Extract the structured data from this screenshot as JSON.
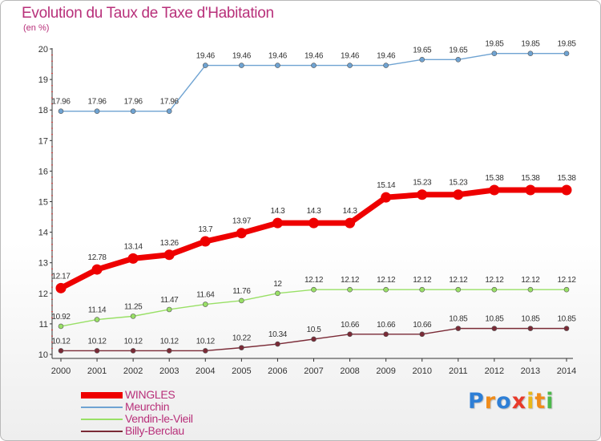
{
  "chart_data": {
    "type": "line",
    "title": "Evolution du Taux de Taxe d'Habitation",
    "ylabel": "(en %)",
    "xlabel": "",
    "x": [
      "2000",
      "2001",
      "2002",
      "2003",
      "2004",
      "2005",
      "2006",
      "2007",
      "2008",
      "2009",
      "2010",
      "2011",
      "2012",
      "2013",
      "2014"
    ],
    "ylim": [
      10,
      20
    ],
    "yticks": [
      "10",
      "11",
      "12",
      "13",
      "14",
      "15",
      "16",
      "17",
      "18",
      "19",
      "20"
    ],
    "grid": false,
    "legend_position": "bottom-left",
    "series": [
      {
        "name": "WINGLES",
        "color": "#ee0000",
        "emphasis": true,
        "values": [
          12.17,
          12.78,
          13.14,
          13.26,
          13.7,
          13.97,
          14.3,
          14.3,
          14.3,
          15.14,
          15.23,
          15.23,
          15.38,
          15.38,
          15.38
        ],
        "labels": [
          "12.17",
          "12.78",
          "13.14",
          "13.26",
          "13.7",
          "13.97",
          "14.3",
          "14.3",
          "14.3",
          "15.14",
          "15.23",
          "15.23",
          "15.38",
          "15.38",
          "15.38"
        ]
      },
      {
        "name": "Meurchin",
        "color": "#6fa3d2",
        "emphasis": false,
        "values": [
          17.96,
          17.96,
          17.96,
          17.96,
          19.46,
          19.46,
          19.46,
          19.46,
          19.46,
          19.46,
          19.65,
          19.65,
          19.85,
          19.85,
          19.85
        ],
        "labels": [
          "17.96",
          "17.96",
          "17.96",
          "17.96",
          "19.46",
          "19.46",
          "19.46",
          "19.46",
          "19.46",
          "19.46",
          "19.65",
          "19.65",
          "19.85",
          "19.85",
          "19.85"
        ]
      },
      {
        "name": "Vendin-le-Vieil",
        "color": "#99e066",
        "emphasis": false,
        "values": [
          10.92,
          11.14,
          11.25,
          11.47,
          11.64,
          11.76,
          12,
          12.12,
          12.12,
          12.12,
          12.12,
          12.12,
          12.12,
          12.12,
          12.12
        ],
        "labels": [
          "10.92",
          "11.14",
          "11.25",
          "11.47",
          "11.64",
          "11.76",
          "12",
          "12.12",
          "12.12",
          "12.12",
          "12.12",
          "12.12",
          "12.12",
          "12.12",
          "12.12"
        ]
      },
      {
        "name": "Billy-Berclau",
        "color": "#7a2a36",
        "emphasis": false,
        "values": [
          10.12,
          10.12,
          10.12,
          10.12,
          10.12,
          10.22,
          10.34,
          10.5,
          10.66,
          10.66,
          10.66,
          10.85,
          10.85,
          10.85,
          10.85
        ],
        "labels": [
          "10.12",
          "10.12",
          "10.12",
          "10.12",
          "10.12",
          "10.22",
          "10.34",
          "10.5",
          "10.66",
          "10.66",
          "10.66",
          "10.85",
          "10.85",
          "10.85",
          "10.85"
        ]
      }
    ]
  },
  "logo": {
    "letters": [
      {
        "char": "P",
        "color": "#2e7fd6"
      },
      {
        "char": "r",
        "color": "#f08c1a"
      },
      {
        "char": "o",
        "color": "#2e7fd6"
      },
      {
        "char": "x",
        "color": "#e83a2a"
      },
      {
        "char": "i",
        "color": "#e8b81a"
      },
      {
        "char": "t",
        "color": "#f08c1a"
      },
      {
        "char": "i",
        "color": "#4cb84c"
      }
    ]
  }
}
